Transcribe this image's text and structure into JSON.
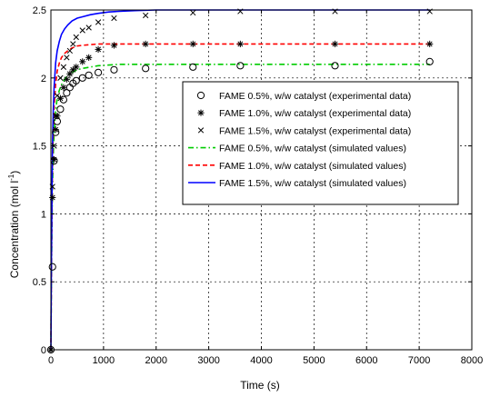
{
  "chart_data": {
    "type": "line",
    "title": "",
    "xlabel": "Time (s)",
    "ylabel_main": "Concentration (mol l",
    "ylabel_sup": "-1",
    "ylabel_tail": ")",
    "xlim": [
      0,
      8000
    ],
    "ylim": [
      0,
      2.5
    ],
    "xticks": [
      0,
      1000,
      2000,
      3000,
      4000,
      5000,
      6000,
      7000,
      8000
    ],
    "yticks": [
      0,
      0.5,
      1,
      1.5,
      2,
      2.5
    ],
    "xtick_labels": [
      "0",
      "1000",
      "2000",
      "3000",
      "4000",
      "5000",
      "6000",
      "7000",
      "8000"
    ],
    "ytick_labels": [
      "0",
      "0.5",
      "1",
      "1.5",
      "2",
      "2.5"
    ],
    "grid": true,
    "legend_position": "center-right",
    "experimental": [
      {
        "name": "FAME 0.5%, w/w catalyst (experimental data)",
        "marker": "circle",
        "color": "#000000",
        "x": [
          0,
          30,
          60,
          90,
          120,
          180,
          240,
          300,
          360,
          420,
          480,
          600,
          720,
          900,
          1200,
          1800,
          2700,
          3600,
          5400,
          7200
        ],
        "y": [
          0,
          0.61,
          1.39,
          1.6,
          1.68,
          1.77,
          1.84,
          1.89,
          1.93,
          1.96,
          1.98,
          2.0,
          2.02,
          2.04,
          2.06,
          2.07,
          2.08,
          2.09,
          2.09,
          2.12
        ]
      },
      {
        "name": "FAME 1.0%, w/w catalyst (experimental data)",
        "marker": "star",
        "color": "#000000",
        "x": [
          0,
          30,
          60,
          90,
          120,
          180,
          240,
          300,
          360,
          420,
          480,
          600,
          720,
          900,
          1200,
          1800,
          2700,
          3600,
          5400,
          7200
        ],
        "y": [
          0,
          1.12,
          1.4,
          1.62,
          1.72,
          1.85,
          1.93,
          1.99,
          2.03,
          2.06,
          2.08,
          2.12,
          2.15,
          2.21,
          2.24,
          2.25,
          2.25,
          2.25,
          2.25,
          2.25
        ]
      },
      {
        "name": "FAME 1.5%, w/w catalyst (experimental data)",
        "marker": "x",
        "color": "#000000",
        "x": [
          0,
          30,
          60,
          90,
          120,
          180,
          240,
          300,
          360,
          420,
          480,
          600,
          720,
          900,
          1200,
          1800,
          2700,
          3600,
          5400,
          7200
        ],
        "y": [
          0,
          1.2,
          1.5,
          1.72,
          1.87,
          2.0,
          2.08,
          2.15,
          2.2,
          2.25,
          2.3,
          2.35,
          2.37,
          2.41,
          2.44,
          2.46,
          2.48,
          2.49,
          2.49,
          2.49
        ]
      }
    ],
    "simulated": [
      {
        "name": "FAME 0.5%, w/w catalyst (simulated values)",
        "color": "#00cc00",
        "dash": "6,3,1.5,3",
        "x": [
          0,
          10,
          20,
          30,
          45,
          60,
          90,
          120,
          160,
          200,
          260,
          320,
          400,
          500,
          600,
          750,
          900,
          1100,
          1300,
          1600,
          2000,
          2500,
          3000,
          4000,
          5000,
          6000,
          7200
        ],
        "y": [
          0,
          0.55,
          0.93,
          1.19,
          1.43,
          1.59,
          1.76,
          1.85,
          1.91,
          1.95,
          1.99,
          2.02,
          2.04,
          2.06,
          2.07,
          2.08,
          2.09,
          2.095,
          2.1,
          2.1,
          2.1,
          2.1,
          2.1,
          2.1,
          2.1,
          2.1,
          2.1
        ]
      },
      {
        "name": "FAME 1.0%, w/w catalyst (simulated values)",
        "color": "#ff0000",
        "dash": "5,3",
        "x": [
          0,
          10,
          20,
          30,
          45,
          60,
          90,
          120,
          160,
          200,
          260,
          320,
          400,
          500,
          600,
          750,
          900,
          1100,
          1300,
          1600,
          2000,
          2500,
          3000,
          4000,
          5000,
          6000,
          7200
        ],
        "y": [
          0,
          0.62,
          1.05,
          1.34,
          1.61,
          1.78,
          1.96,
          2.05,
          2.11,
          2.15,
          2.18,
          2.2,
          2.22,
          2.235,
          2.24,
          2.245,
          2.25,
          2.25,
          2.25,
          2.25,
          2.25,
          2.25,
          2.25,
          2.25,
          2.25,
          2.25,
          2.25
        ]
      },
      {
        "name": "FAME 1.5%, w/w catalyst (simulated values)",
        "color": "#0000ff",
        "dash": "",
        "x": [
          0,
          10,
          20,
          30,
          45,
          60,
          90,
          120,
          160,
          200,
          260,
          320,
          400,
          500,
          600,
          750,
          900,
          1100,
          1300,
          1600,
          2000,
          2500,
          3000,
          4000,
          5000,
          6000,
          7200
        ],
        "y": [
          0,
          0.7,
          1.16,
          1.48,
          1.76,
          1.93,
          2.11,
          2.2,
          2.27,
          2.32,
          2.36,
          2.39,
          2.42,
          2.44,
          2.45,
          2.465,
          2.475,
          2.485,
          2.49,
          2.495,
          2.5,
          2.5,
          2.5,
          2.5,
          2.5,
          2.5,
          2.5
        ]
      }
    ]
  }
}
